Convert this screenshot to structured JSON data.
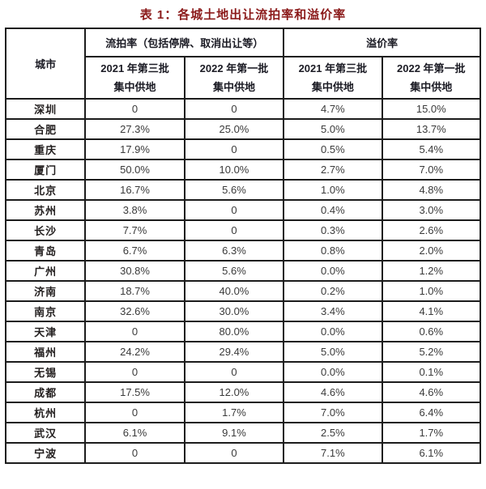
{
  "title": "表 1：各城土地出让流拍率和溢价率",
  "table": {
    "city_column_header": "城市",
    "group_headers": [
      "流拍率（包括停牌、取消出让等）",
      "溢价率"
    ],
    "sub_headers": [
      {
        "line1": "2021 年第三批",
        "line2": "集中供地"
      },
      {
        "line1": "2022 年第一批",
        "line2": "集中供地"
      },
      {
        "line1": "2021 年第三批",
        "line2": "集中供地"
      },
      {
        "line1": "2022 年第一批",
        "line2": "集中供地"
      }
    ],
    "rows": [
      {
        "city": "深圳",
        "values": [
          "0",
          "0",
          "4.7%",
          "15.0%"
        ]
      },
      {
        "city": "合肥",
        "values": [
          "27.3%",
          "25.0%",
          "5.0%",
          "13.7%"
        ]
      },
      {
        "city": "重庆",
        "values": [
          "17.9%",
          "0",
          "0.5%",
          "5.4%"
        ]
      },
      {
        "city": "厦门",
        "values": [
          "50.0%",
          "10.0%",
          "2.7%",
          "7.0%"
        ]
      },
      {
        "city": "北京",
        "values": [
          "16.7%",
          "5.6%",
          "1.0%",
          "4.8%"
        ]
      },
      {
        "city": "苏州",
        "values": [
          "3.8%",
          "0",
          "0.4%",
          "3.0%"
        ]
      },
      {
        "city": "长沙",
        "values": [
          "7.7%",
          "0",
          "0.3%",
          "2.6%"
        ]
      },
      {
        "city": "青岛",
        "values": [
          "6.7%",
          "6.3%",
          "0.8%",
          "2.0%"
        ]
      },
      {
        "city": "广州",
        "values": [
          "30.8%",
          "5.6%",
          "0.0%",
          "1.2%"
        ]
      },
      {
        "city": "济南",
        "values": [
          "18.7%",
          "40.0%",
          "0.2%",
          "1.0%"
        ]
      },
      {
        "city": "南京",
        "values": [
          "32.6%",
          "30.0%",
          "3.4%",
          "4.1%"
        ]
      },
      {
        "city": "天津",
        "values": [
          "0",
          "80.0%",
          "0.0%",
          "0.6%"
        ]
      },
      {
        "city": "福州",
        "values": [
          "24.2%",
          "29.4%",
          "5.0%",
          "5.2%"
        ]
      },
      {
        "city": "无锡",
        "values": [
          "0",
          "0",
          "0.0%",
          "0.1%"
        ]
      },
      {
        "city": "成都",
        "values": [
          "17.5%",
          "12.0%",
          "4.6%",
          "4.6%"
        ]
      },
      {
        "city": "杭州",
        "values": [
          "0",
          "1.7%",
          "7.0%",
          "6.4%"
        ]
      },
      {
        "city": "武汉",
        "values": [
          "6.1%",
          "9.1%",
          "2.5%",
          "1.7%"
        ]
      },
      {
        "city": "宁波",
        "values": [
          "0",
          "0",
          "7.1%",
          "6.1%"
        ]
      }
    ]
  },
  "colors": {
    "title": "#8B1A1A",
    "header_text": "#1B1B24",
    "city_text": "#221E1E",
    "value_text": "#3A3A3A",
    "border": "#1C1C1C",
    "background": "#FFFFFF"
  }
}
